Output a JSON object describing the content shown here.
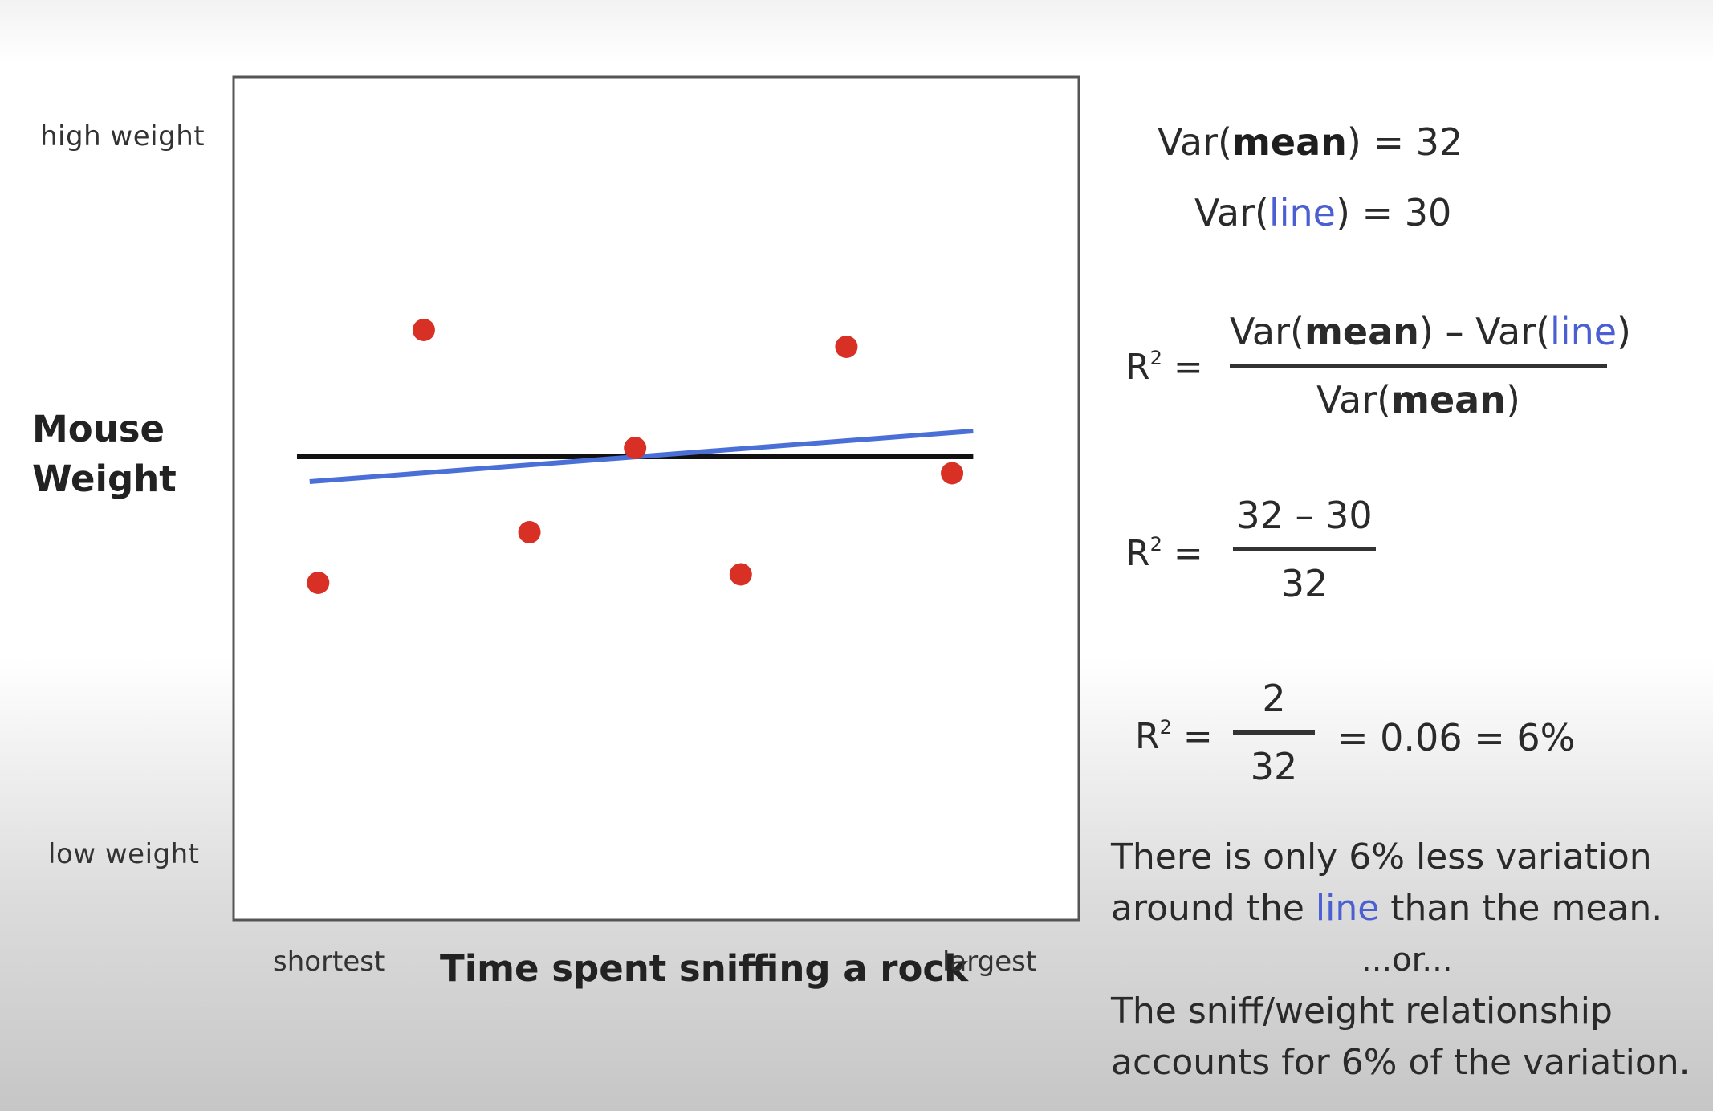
{
  "chart_data": {
    "type": "scatter",
    "xlabel": "Time spent sniffing a rock",
    "ylabel": "Mouse Weight",
    "x_tick_labels": [
      "shortest",
      "largest"
    ],
    "y_tick_labels": [
      "low weight",
      "high weight"
    ],
    "xlim": [
      0,
      10
    ],
    "ylim": [
      0,
      10
    ],
    "grid": false,
    "points": [
      {
        "x": 1,
        "y": 4.0
      },
      {
        "x": 2.25,
        "y": 7.0
      },
      {
        "x": 3.5,
        "y": 4.6
      },
      {
        "x": 4.75,
        "y": 5.6
      },
      {
        "x": 6,
        "y": 4.1
      },
      {
        "x": 7.25,
        "y": 6.8
      },
      {
        "x": 8.5,
        "y": 5.3
      }
    ],
    "lines": [
      {
        "name": "mean",
        "color": "#111111",
        "x": [
          0.75,
          8.75
        ],
        "y": [
          5.5,
          5.5
        ]
      },
      {
        "name": "line",
        "color": "#4a6fd6",
        "x": [
          0.9,
          8.75
        ],
        "y": [
          5.2,
          5.8
        ]
      }
    ],
    "point_color": "#d93025"
  },
  "equations": {
    "var_prefix": "Var(",
    "mean_word": "mean",
    "line_word": "line",
    "close": ")",
    "var_mean_value": " = 32",
    "var_line_value": " = 30",
    "r2_label": "R",
    "r2_sup": "2",
    "r2_eq": " =",
    "minus": " – ",
    "step2_num": "32 – 30",
    "step2_den": "32",
    "step3_num": "2",
    "step3_den": "32",
    "step3_result": "= 0.06 = 6%"
  },
  "notes": {
    "line1": "There is only 6% less variation",
    "line2_pre": "around the ",
    "line2_blue": "line",
    "line2_post": " than the mean.",
    "or": "...or...",
    "line3": "The sniff/weight relationship",
    "line4": "accounts for 6% of the variation."
  }
}
